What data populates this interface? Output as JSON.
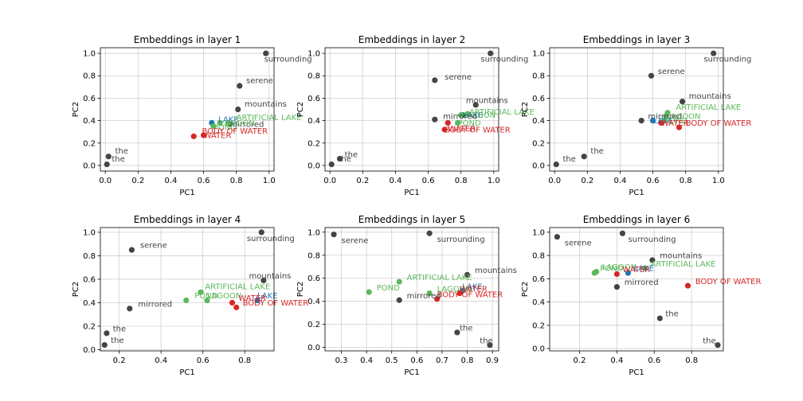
{
  "chart_data": [
    {
      "type": "scatter",
      "title": "Embeddings in layer 1",
      "xlabel": "PC1",
      "ylabel": "PC2",
      "xlim": [
        -0.03,
        1.03
      ],
      "ylim": [
        -0.05,
        1.05
      ],
      "xticks": [
        0.0,
        0.2,
        0.4,
        0.6,
        0.8,
        1.0
      ],
      "yticks": [
        0.0,
        0.2,
        0.4,
        0.6,
        0.8,
        1.0
      ],
      "xtick_labels": [
        "0.0",
        "0.2",
        "0.4",
        "0.6",
        "0.8",
        "1.0"
      ],
      "ytick_labels": [
        "0.0",
        "0.2",
        "0.4",
        "0.6",
        "0.8",
        "1.0"
      ],
      "grid": true,
      "points": [
        {
          "label": "surrounding",
          "x": 0.98,
          "y": 1.0,
          "color": "#444444",
          "dx": -0.01,
          "dy": -0.05
        },
        {
          "label": "serene",
          "x": 0.82,
          "y": 0.71,
          "color": "#444444",
          "dx": 0.04,
          "dy": 0.05
        },
        {
          "label": "mountains",
          "x": 0.81,
          "y": 0.5,
          "color": "#444444",
          "dx": 0.04,
          "dy": 0.05
        },
        {
          "label": "mirrored",
          "x": 0.76,
          "y": 0.37,
          "color": "#444444",
          "dx": 0.0,
          "dy": 0.0
        },
        {
          "label": "LAKE",
          "x": 0.65,
          "y": 0.38,
          "color": "#1f77b4",
          "dx": 0.04,
          "dy": 0.03
        },
        {
          "label": "LAGOON",
          "x": 0.7,
          "y": 0.38,
          "color": "#5cb85c",
          "dx": 0.0,
          "dy": 0.0
        },
        {
          "label": "ARTIFICIAL LAKE",
          "x": 0.75,
          "y": 0.38,
          "color": "#5cb85c",
          "dx": 0.05,
          "dy": 0.05
        },
        {
          "label": "POND",
          "x": 0.66,
          "y": 0.35,
          "color": "#5cb85c",
          "dx": 0.0,
          "dy": -0.01
        },
        {
          "label": "WATER",
          "x": 0.6,
          "y": 0.27,
          "color": "#d62728",
          "dx": 0.0,
          "dy": 0.0
        },
        {
          "label": "BODY OF WATER",
          "x": 0.54,
          "y": 0.26,
          "color": "#d62728",
          "dx": 0.05,
          "dy": 0.05
        },
        {
          "label": "the",
          "x": 0.02,
          "y": 0.08,
          "color": "#444444",
          "dx": 0.04,
          "dy": 0.05
        },
        {
          "label": "the",
          "x": 0.01,
          "y": 0.01,
          "color": "#444444",
          "dx": 0.03,
          "dy": 0.05
        }
      ]
    },
    {
      "type": "scatter",
      "title": "Embeddings in layer 2",
      "xlabel": "PC1",
      "ylabel": "PC2",
      "xlim": [
        -0.03,
        1.03
      ],
      "ylim": [
        -0.05,
        1.05
      ],
      "xticks": [
        0.0,
        0.2,
        0.4,
        0.6,
        0.8,
        1.0
      ],
      "yticks": [
        0.0,
        0.2,
        0.4,
        0.6,
        0.8,
        1.0
      ],
      "xtick_labels": [
        "0.0",
        "0.2",
        "0.4",
        "0.6",
        "0.8",
        "1.0"
      ],
      "ytick_labels": [
        "0.0",
        "0.2",
        "0.4",
        "0.6",
        "0.8",
        "1.0"
      ],
      "grid": true,
      "points": [
        {
          "label": "surrounding",
          "x": 0.98,
          "y": 1.0,
          "color": "#444444",
          "dx": -0.06,
          "dy": -0.05
        },
        {
          "label": "serene",
          "x": 0.64,
          "y": 0.76,
          "color": "#444444",
          "dx": 0.06,
          "dy": 0.03
        },
        {
          "label": "mountains",
          "x": 0.89,
          "y": 0.54,
          "color": "#444444",
          "dx": -0.06,
          "dy": 0.04
        },
        {
          "label": "ARTIFICIAL LAKE",
          "x": 0.84,
          "y": 0.46,
          "color": "#5cb85c",
          "dx": 0.01,
          "dy": 0.02
        },
        {
          "label": "LAKE",
          "x": 0.81,
          "y": 0.45,
          "color": "#1f77b4",
          "dx": 0.0,
          "dy": 0.0
        },
        {
          "label": "LAGOON",
          "x": 0.8,
          "y": 0.45,
          "color": "#5cb85c",
          "dx": 0.0,
          "dy": 0.0
        },
        {
          "label": "mirrored",
          "x": 0.64,
          "y": 0.41,
          "color": "#444444",
          "dx": 0.05,
          "dy": 0.03
        },
        {
          "label": "POND",
          "x": 0.78,
          "y": 0.38,
          "color": "#5cb85c",
          "dx": 0.0,
          "dy": 0.0
        },
        {
          "label": "WATER",
          "x": 0.72,
          "y": 0.38,
          "color": "#d62728",
          "dx": 0.0,
          "dy": -0.05
        },
        {
          "label": "BODY OF WATER",
          "x": 0.7,
          "y": 0.32,
          "color": "#d62728",
          "dx": 0.0,
          "dy": 0.0
        },
        {
          "label": "the",
          "x": 0.06,
          "y": 0.06,
          "color": "#444444",
          "dx": 0.03,
          "dy": 0.04
        },
        {
          "label": "the",
          "x": 0.01,
          "y": 0.01,
          "color": "#444444",
          "dx": 0.04,
          "dy": 0.05
        }
      ]
    },
    {
      "type": "scatter",
      "title": "Embeddings in layer 3",
      "xlabel": "PC1",
      "ylabel": "PC2",
      "xlim": [
        -0.03,
        1.03
      ],
      "ylim": [
        -0.05,
        1.05
      ],
      "xticks": [
        0.0,
        0.2,
        0.4,
        0.6,
        0.8,
        1.0
      ],
      "yticks": [
        0.0,
        0.2,
        0.4,
        0.6,
        0.8,
        1.0
      ],
      "xtick_labels": [
        "0.0",
        "0.2",
        "0.4",
        "0.6",
        "0.8",
        "1.0"
      ],
      "ytick_labels": [
        "0.0",
        "0.2",
        "0.4",
        "0.6",
        "0.8",
        "1.0"
      ],
      "grid": true,
      "points": [
        {
          "label": "surrounding",
          "x": 0.97,
          "y": 1.0,
          "color": "#444444",
          "dx": -0.06,
          "dy": -0.05
        },
        {
          "label": "serene",
          "x": 0.59,
          "y": 0.8,
          "color": "#444444",
          "dx": 0.04,
          "dy": 0.04
        },
        {
          "label": "mountains",
          "x": 0.78,
          "y": 0.57,
          "color": "#444444",
          "dx": 0.04,
          "dy": 0.05
        },
        {
          "label": "ARTIFICIAL LAKE",
          "x": 0.69,
          "y": 0.47,
          "color": "#5cb85c",
          "dx": 0.05,
          "dy": 0.05
        },
        {
          "label": "LAGOON",
          "x": 0.68,
          "y": 0.44,
          "color": "#5cb85c",
          "dx": 0.0,
          "dy": 0.0
        },
        {
          "label": "mirrored",
          "x": 0.53,
          "y": 0.4,
          "color": "#444444",
          "dx": 0.04,
          "dy": 0.04
        },
        {
          "label": "LAKE",
          "x": 0.6,
          "y": 0.4,
          "color": "#1f77b4",
          "dx": 0.0,
          "dy": 0.0
        },
        {
          "label": "POND",
          "x": 0.67,
          "y": 0.4,
          "color": "#5cb85c",
          "dx": 0.0,
          "dy": 0.0
        },
        {
          "label": "WATER",
          "x": 0.65,
          "y": 0.38,
          "color": "#d62728",
          "dx": 0.0,
          "dy": 0.0
        },
        {
          "label": "BODY OF WATER",
          "x": 0.76,
          "y": 0.34,
          "color": "#d62728",
          "dx": 0.04,
          "dy": 0.04
        },
        {
          "label": "the",
          "x": 0.18,
          "y": 0.08,
          "color": "#444444",
          "dx": 0.04,
          "dy": 0.05
        },
        {
          "label": "the",
          "x": 0.01,
          "y": 0.01,
          "color": "#444444",
          "dx": 0.04,
          "dy": 0.05
        }
      ]
    },
    {
      "type": "scatter",
      "title": "Embeddings in layer 4",
      "xlabel": "PC1",
      "ylabel": "PC2",
      "xlim": [
        0.11,
        0.94
      ],
      "ylim": [
        -0.01,
        1.04
      ],
      "xticks": [
        0.2,
        0.4,
        0.6,
        0.8
      ],
      "yticks": [
        0.0,
        0.2,
        0.4,
        0.6,
        0.8,
        1.0
      ],
      "xtick_labels": [
        "0.2",
        "0.4",
        "0.6",
        "0.8"
      ],
      "ytick_labels": [
        "0.0",
        "0.2",
        "0.4",
        "0.6",
        "0.8",
        "1.0"
      ],
      "grid": true,
      "points": [
        {
          "label": "surrounding",
          "x": 0.88,
          "y": 1.0,
          "color": "#444444",
          "dx": -0.07,
          "dy": -0.05
        },
        {
          "label": "serene",
          "x": 0.26,
          "y": 0.85,
          "color": "#444444",
          "dx": 0.04,
          "dy": 0.04
        },
        {
          "label": "mountains",
          "x": 0.89,
          "y": 0.59,
          "color": "#444444",
          "dx": -0.07,
          "dy": 0.04
        },
        {
          "label": "ARTIFICIAL LAKE",
          "x": 0.59,
          "y": 0.49,
          "color": "#5cb85c",
          "dx": 0.02,
          "dy": 0.05
        },
        {
          "label": "POND",
          "x": 0.52,
          "y": 0.42,
          "color": "#5cb85c",
          "dx": 0.04,
          "dy": 0.04
        },
        {
          "label": "LAGOON",
          "x": 0.62,
          "y": 0.42,
          "color": "#5cb85c",
          "dx": 0.0,
          "dy": 0.04
        },
        {
          "label": "LAKE",
          "x": 0.86,
          "y": 0.42,
          "color": "#1f77b4",
          "dx": 0.0,
          "dy": 0.04
        },
        {
          "label": "WATER",
          "x": 0.74,
          "y": 0.4,
          "color": "#d62728",
          "dx": 0.03,
          "dy": 0.04
        },
        {
          "label": "BODY OF WATER",
          "x": 0.76,
          "y": 0.36,
          "color": "#d62728",
          "dx": 0.03,
          "dy": 0.04
        },
        {
          "label": "mirrored",
          "x": 0.25,
          "y": 0.35,
          "color": "#444444",
          "dx": 0.04,
          "dy": 0.04
        },
        {
          "label": "the",
          "x": 0.14,
          "y": 0.14,
          "color": "#444444",
          "dx": 0.03,
          "dy": 0.04
        },
        {
          "label": "the",
          "x": 0.13,
          "y": 0.04,
          "color": "#444444",
          "dx": 0.03,
          "dy": 0.04
        }
      ]
    },
    {
      "type": "scatter",
      "title": "Embeddings in layer 5",
      "xlabel": "PC1",
      "ylabel": "PC2",
      "xlim": [
        0.235,
        0.925
      ],
      "ylim": [
        -0.03,
        1.04
      ],
      "xticks": [
        0.3,
        0.4,
        0.5,
        0.6,
        0.7,
        0.8,
        0.9
      ],
      "yticks": [
        0.0,
        0.2,
        0.4,
        0.6,
        0.8,
        1.0
      ],
      "xtick_labels": [
        "0.3",
        "0.4",
        "0.5",
        "0.6",
        "0.7",
        "0.8",
        "0.9"
      ],
      "ytick_labels": [
        "0.0",
        "0.2",
        "0.4",
        "0.6",
        "0.8",
        "1.0"
      ],
      "grid": true,
      "points": [
        {
          "label": "serene",
          "x": 0.27,
          "y": 0.98,
          "color": "#444444",
          "dx": 0.03,
          "dy": -0.05
        },
        {
          "label": "surrounding",
          "x": 0.65,
          "y": 0.99,
          "color": "#444444",
          "dx": 0.03,
          "dy": -0.05
        },
        {
          "label": "mountains",
          "x": 0.8,
          "y": 0.63,
          "color": "#444444",
          "dx": 0.03,
          "dy": 0.04
        },
        {
          "label": "ARTIFICIAL LAKE",
          "x": 0.53,
          "y": 0.57,
          "color": "#5cb85c",
          "dx": 0.03,
          "dy": 0.04
        },
        {
          "label": "POND",
          "x": 0.41,
          "y": 0.48,
          "color": "#5cb85c",
          "dx": 0.03,
          "dy": 0.04
        },
        {
          "label": "LAGOON",
          "x": 0.65,
          "y": 0.47,
          "color": "#5cb85c",
          "dx": 0.03,
          "dy": 0.04
        },
        {
          "label": "LAKE",
          "x": 0.78,
          "y": 0.49,
          "color": "#1f77b4",
          "dx": 0.0,
          "dy": 0.04
        },
        {
          "label": "WATER",
          "x": 0.77,
          "y": 0.47,
          "color": "#d62728",
          "dx": 0.0,
          "dy": 0.04
        },
        {
          "label": "BODY OF WATER",
          "x": 0.68,
          "y": 0.42,
          "color": "#d62728",
          "dx": 0.0,
          "dy": 0.04
        },
        {
          "label": "mirrored",
          "x": 0.53,
          "y": 0.41,
          "color": "#444444",
          "dx": 0.03,
          "dy": 0.04
        },
        {
          "label": "the",
          "x": 0.76,
          "y": 0.13,
          "color": "#444444",
          "dx": 0.01,
          "dy": 0.04
        },
        {
          "label": "the",
          "x": 0.89,
          "y": 0.02,
          "color": "#444444",
          "dx": -0.04,
          "dy": 0.04
        }
      ]
    },
    {
      "type": "scatter",
      "title": "Embeddings in layer 6",
      "xlabel": "PC1",
      "ylabel": "PC2",
      "xlim": [
        0.04,
        0.97
      ],
      "ylim": [
        -0.02,
        1.04
      ],
      "xticks": [
        0.2,
        0.4,
        0.6,
        0.8
      ],
      "yticks": [
        0.0,
        0.2,
        0.4,
        0.6,
        0.8,
        1.0
      ],
      "xtick_labels": [
        "0.2",
        "0.4",
        "0.6",
        "0.8"
      ],
      "ytick_labels": [
        "0.0",
        "0.2",
        "0.4",
        "0.6",
        "0.8",
        "1.0"
      ],
      "grid": true,
      "points": [
        {
          "label": "serene",
          "x": 0.08,
          "y": 0.96,
          "color": "#444444",
          "dx": 0.04,
          "dy": -0.05
        },
        {
          "label": "surrounding",
          "x": 0.43,
          "y": 0.99,
          "color": "#444444",
          "dx": 0.03,
          "dy": -0.05
        },
        {
          "label": "mountains",
          "x": 0.59,
          "y": 0.76,
          "color": "#444444",
          "dx": 0.04,
          "dy": 0.04
        },
        {
          "label": "ARTIFICIAL LAKE",
          "x": 0.55,
          "y": 0.69,
          "color": "#5cb85c",
          "dx": 0.03,
          "dy": 0.04
        },
        {
          "label": "LAGOON",
          "x": 0.29,
          "y": 0.66,
          "color": "#5cb85c",
          "dx": 0.03,
          "dy": 0.04
        },
        {
          "label": "POND",
          "x": 0.28,
          "y": 0.65,
          "color": "#5cb85c",
          "dx": 0.03,
          "dy": 0.04
        },
        {
          "label": "LAKE",
          "x": 0.46,
          "y": 0.65,
          "color": "#1f77b4",
          "dx": 0.03,
          "dy": 0.04
        },
        {
          "label": "WATER",
          "x": 0.4,
          "y": 0.64,
          "color": "#d62728",
          "dx": 0.03,
          "dy": 0.04
        },
        {
          "label": "BODY OF WATER",
          "x": 0.78,
          "y": 0.54,
          "color": "#d62728",
          "dx": 0.04,
          "dy": 0.04
        },
        {
          "label": "mirrored",
          "x": 0.4,
          "y": 0.53,
          "color": "#444444",
          "dx": 0.04,
          "dy": 0.04
        },
        {
          "label": "the",
          "x": 0.63,
          "y": 0.26,
          "color": "#444444",
          "dx": 0.03,
          "dy": 0.04
        },
        {
          "label": "the",
          "x": 0.94,
          "y": 0.03,
          "color": "#444444",
          "dx": -0.08,
          "dy": 0.04
        }
      ]
    }
  ]
}
